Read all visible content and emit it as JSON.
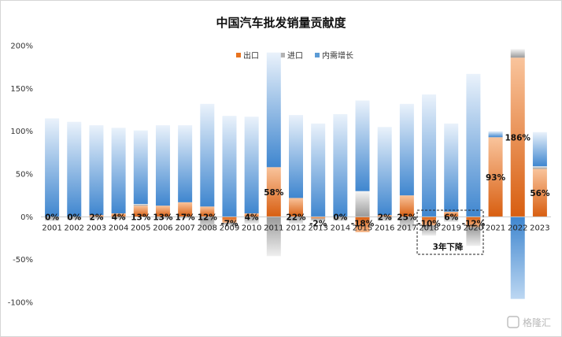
{
  "chart_data": {
    "type": "bar",
    "stacked": true,
    "title": "中国汽车批发销量贡献度",
    "categories": [
      "2001",
      "2002",
      "2003",
      "2004",
      "2005",
      "2006",
      "2007",
      "2008",
      "2009",
      "2010",
      "2011",
      "2012",
      "2013",
      "2014",
      "2015",
      "2016",
      "2017",
      "2018",
      "2019",
      "2020",
      "2021",
      "2022",
      "2023"
    ],
    "series": [
      {
        "name": "出口",
        "color": "#e8731e",
        "values": [
          0,
          0,
          2,
          4,
          13,
          13,
          17,
          12,
          -7,
          4,
          58,
          22,
          -2,
          0,
          -18,
          2,
          25,
          -10,
          6,
          -12,
          93,
          186,
          56
        ]
      },
      {
        "name": "进口",
        "color": "#b3b3b3",
        "values": [
          -5,
          -4,
          -3,
          -3,
          2,
          -3,
          -2,
          -16,
          -3,
          -8,
          -46,
          -8,
          -3,
          -5,
          30,
          -5,
          -15,
          -12,
          -6,
          -22,
          0,
          10,
          3
        ]
      },
      {
        "name": "内需增长",
        "color": "#5b9bd5",
        "values": [
          115,
          111,
          105,
          100,
          86,
          94,
          90,
          120,
          118,
          113,
          134,
          97,
          109,
          120,
          106,
          103,
          107,
          143,
          103,
          167,
          7,
          -96,
          40
        ]
      }
    ],
    "data_labels": [
      "0%",
      "0%",
      "2%",
      "4%",
      "13%",
      "13%",
      "17%",
      "12%",
      "-7%",
      "4%",
      "58%",
      "22%",
      "-2%",
      "0%",
      "-18%",
      "2%",
      "25%",
      "-10%",
      "6%",
      "-12%",
      "93%",
      "186%",
      "56%"
    ],
    "ytick_labels": [
      "200%",
      "150%",
      "100%",
      "50%",
      "0%",
      "-50%",
      "-100%"
    ],
    "ylim": [
      -100,
      200
    ],
    "legend": "top-center",
    "annotation": "3年下降",
    "watermark": "格隆汇"
  }
}
